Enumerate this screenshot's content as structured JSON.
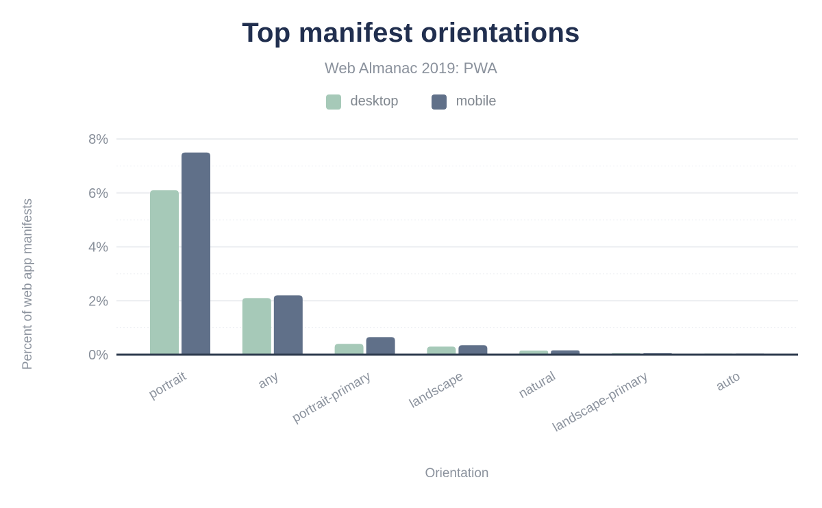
{
  "chart_data": {
    "type": "bar",
    "title": "Top manifest orientations",
    "subtitle": "Web Almanac 2019: PWA",
    "xlabel": "Orientation",
    "ylabel": "Percent of web app manifests",
    "categories": [
      "portrait",
      "any",
      "portrait-primary",
      "landscape",
      "natural",
      "landscape-primary",
      "auto"
    ],
    "series": [
      {
        "name": "desktop",
        "color": "#a6c9b8",
        "values": [
          6.1,
          2.1,
          0.4,
          0.3,
          0.15,
          0.05,
          0.04
        ]
      },
      {
        "name": "mobile",
        "color": "#607089",
        "values": [
          7.5,
          2.2,
          0.65,
          0.35,
          0.16,
          0.05,
          0.04
        ]
      }
    ],
    "y_ticks": [
      {
        "value": 0,
        "label": "0%"
      },
      {
        "value": 2,
        "label": "2%"
      },
      {
        "value": 4,
        "label": "4%"
      },
      {
        "value": 6,
        "label": "6%"
      },
      {
        "value": 8,
        "label": "8%"
      }
    ],
    "ylim": [
      0,
      8
    ],
    "grid": {
      "major": "solid",
      "minor": "dotted"
    },
    "legend_position": "top",
    "colors": {
      "title_text": "#212f4f",
      "subtitle_text": "#8a919c",
      "tick_text": "#878e99",
      "axis_title_text": "#8b929d",
      "axis_line": "#2d3a4d",
      "grid_major": "#ebedf0",
      "grid_minor": "#edeff2"
    }
  }
}
